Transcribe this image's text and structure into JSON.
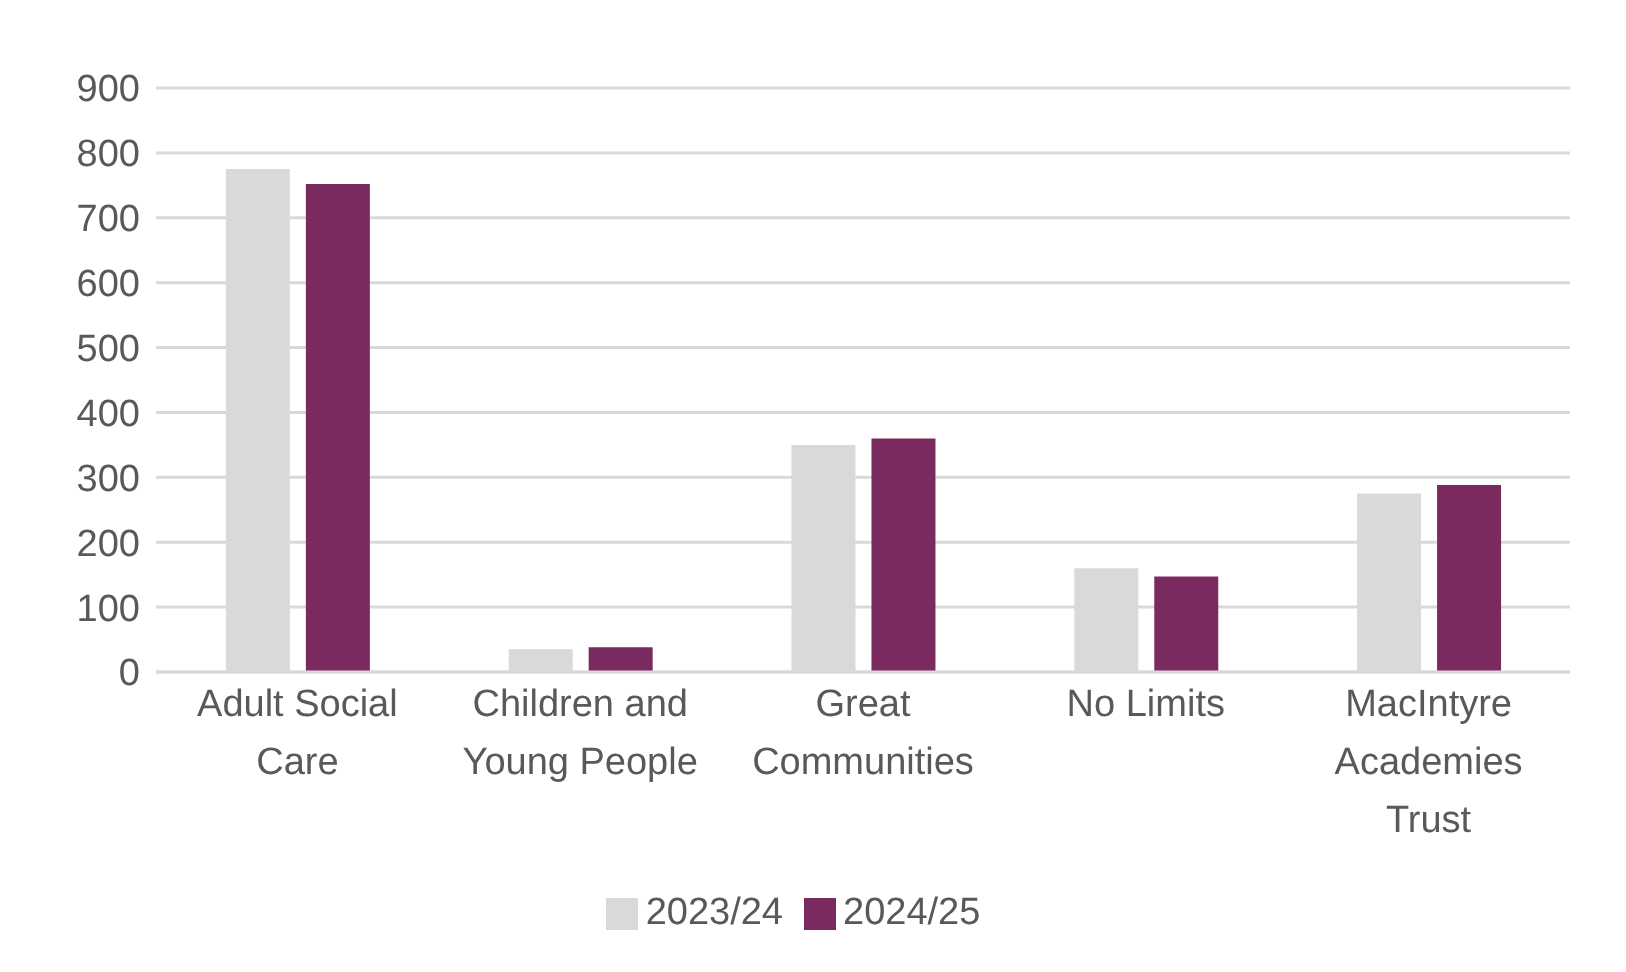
{
  "chart_data": {
    "type": "bar",
    "categories": [
      "Adult Social Care",
      "Children and Young People",
      "Great Communities",
      "No Limits",
      "MacIntyre Academies Trust"
    ],
    "series": [
      {
        "name": "2023/24",
        "color": "#d9d9d9",
        "values": [
          775,
          35,
          350,
          160,
          275
        ]
      },
      {
        "name": "2024/25",
        "color": "#7b2a5f",
        "values": [
          752,
          38,
          360,
          147,
          288
        ]
      }
    ],
    "ylim": [
      0,
      900
    ],
    "yticks": [
      0,
      100,
      200,
      300,
      400,
      500,
      600,
      700,
      800,
      900
    ],
    "grid": "y",
    "legend": "bottom"
  }
}
